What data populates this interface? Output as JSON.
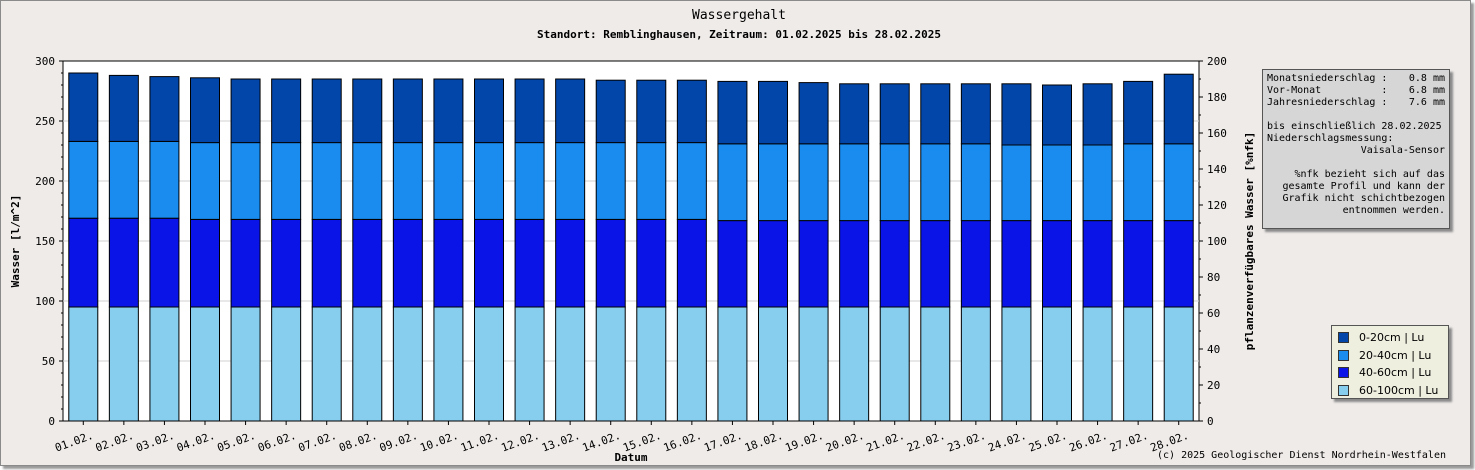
{
  "chart_data": {
    "type": "bar",
    "stacked": true,
    "title": "Wassergehalt",
    "subtitle": "Standort: Remblinghausen, Zeitraum: 01.02.2025 bis 28.02.2025",
    "xlabel": "Datum",
    "ylabel": "Wasser [l/m^2]",
    "y2label": "pflanzenverfügbares Wasser [%nfk]",
    "ylim": [
      0,
      300
    ],
    "y2lim": [
      0,
      200
    ],
    "yticks": [
      0,
      50,
      100,
      150,
      200,
      250,
      300
    ],
    "y2ticks": [
      0,
      20,
      40,
      60,
      80,
      100,
      120,
      140,
      160,
      180,
      200
    ],
    "grid": true,
    "legend_position": "bottom-right",
    "categories": [
      "01.02.",
      "02.02.",
      "03.02.",
      "04.02.",
      "05.02.",
      "06.02.",
      "07.02.",
      "08.02.",
      "09.02.",
      "10.02.",
      "11.02.",
      "12.02.",
      "13.02.",
      "14.02.",
      "15.02.",
      "16.02.",
      "17.02.",
      "18.02.",
      "19.02.",
      "20.02.",
      "21.02.",
      "22.02.",
      "23.02.",
      "24.02.",
      "25.02.",
      "26.02.",
      "27.02.",
      "28.02."
    ],
    "series": [
      {
        "name": "60-100cm | Lu",
        "color": "#87cdee",
        "values": [
          95,
          95,
          95,
          95,
          95,
          95,
          95,
          95,
          95,
          95,
          95,
          95,
          95,
          95,
          95,
          95,
          95,
          95,
          95,
          95,
          95,
          95,
          95,
          95,
          95,
          95,
          95,
          95
        ]
      },
      {
        "name": "40-60cm | Lu",
        "color": "#0a14e6",
        "values": [
          74,
          74,
          74,
          73,
          73,
          73,
          73,
          73,
          73,
          73,
          73,
          73,
          73,
          73,
          73,
          73,
          72,
          72,
          72,
          72,
          72,
          72,
          72,
          72,
          72,
          72,
          72,
          72
        ]
      },
      {
        "name": "20-40cm | Lu",
        "color": "#1a8cf0",
        "values": [
          64,
          64,
          64,
          64,
          64,
          64,
          64,
          64,
          64,
          64,
          64,
          64,
          64,
          64,
          64,
          64,
          64,
          64,
          64,
          64,
          64,
          64,
          64,
          63,
          63,
          63,
          64,
          64
        ]
      },
      {
        "name": "0-20cm | Lu",
        "color": "#0246aa",
        "values": [
          57,
          55,
          54,
          54,
          53,
          53,
          53,
          53,
          53,
          53,
          53,
          53,
          53,
          52,
          52,
          52,
          52,
          52,
          51,
          50,
          50,
          50,
          50,
          51,
          50,
          51,
          52,
          58
        ]
      }
    ]
  },
  "info": {
    "monats_label": "Monatsniederschlag :",
    "monats_value": "0.8 mm",
    "vormonat_label": "Vor-Monat          :",
    "vormonat_value": "6.8 mm",
    "jahres_label": "Jahresniederschlag :",
    "jahres_value": "7.6 mm",
    "line_bis": "bis einschließlich 28.02.2025",
    "line_nmess": "Niederschlagsmessung:",
    "line_sensor": "Vaisala-Sensor",
    "note1": "%nfk bezieht sich auf das",
    "note2": "gesamte Profil und kann der",
    "note3": "Grafik nicht schichtbezogen",
    "note4": "entnommen werden."
  },
  "copyright": "(c) 2025 Geologischer Dienst Nordrhein-Westfalen"
}
